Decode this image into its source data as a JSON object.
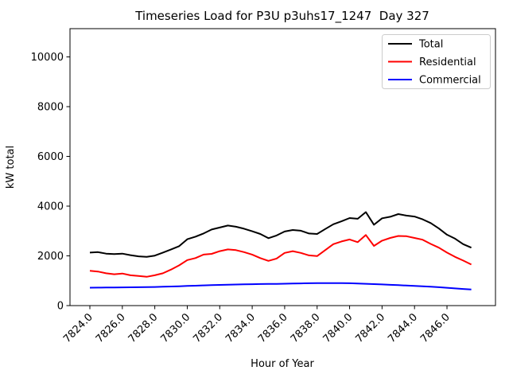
{
  "chart_data": {
    "type": "line",
    "title": "Timeseries Load for P3U p3uhs17_1247  Day 327",
    "xlabel": "Hour of Year",
    "ylabel": "kW total",
    "xlim": [
      7822.8,
      7849.0
    ],
    "ylim": [
      0,
      11100
    ],
    "grid": false,
    "legend_position": "upper right",
    "x_ticks": [
      7824,
      7826,
      7828,
      7830,
      7832,
      7834,
      7836,
      7838,
      7840,
      7842,
      7844,
      7846
    ],
    "x_tick_labels": [
      "7824.0",
      "7826.0",
      "7828.0",
      "7830.0",
      "7832.0",
      "7834.0",
      "7836.0",
      "7838.0",
      "7840.0",
      "7842.0",
      "7844.0",
      "7846.0"
    ],
    "y_ticks": [
      0,
      2000,
      4000,
      6000,
      8000,
      10000
    ],
    "y_tick_labels": [
      "0",
      "2000",
      "4000",
      "6000",
      "8000",
      "10000"
    ],
    "x": [
      7824.0,
      7824.5,
      7825.0,
      7825.5,
      7826.0,
      7826.5,
      7827.0,
      7827.5,
      7828.0,
      7828.5,
      7829.0,
      7829.5,
      7830.0,
      7830.5,
      7831.0,
      7831.5,
      7832.0,
      7832.5,
      7833.0,
      7833.5,
      7834.0,
      7834.5,
      7835.0,
      7835.5,
      7836.0,
      7836.5,
      7837.0,
      7837.5,
      7838.0,
      7838.5,
      7839.0,
      7839.5,
      7840.0,
      7840.5,
      7841.0,
      7841.5,
      7842.0,
      7842.5,
      7843.0,
      7843.5,
      7844.0,
      7844.5,
      7845.0,
      7845.5,
      7846.0,
      7846.5,
      7847.0,
      7847.5
    ],
    "series": [
      {
        "name": "Total",
        "color": "#000000",
        "values": [
          2130,
          2150,
          2090,
          2070,
          2090,
          2030,
          1980,
          1960,
          2010,
          2130,
          2260,
          2390,
          2670,
          2770,
          2900,
          3060,
          3140,
          3220,
          3170,
          3090,
          2990,
          2880,
          2710,
          2820,
          2980,
          3040,
          3010,
          2900,
          2880,
          3080,
          3270,
          3390,
          3520,
          3490,
          3760,
          3250,
          3510,
          3570,
          3680,
          3620,
          3580,
          3470,
          3320,
          3100,
          2850,
          2690,
          2470,
          2330
        ]
      },
      {
        "name": "Residential",
        "color": "#ff0000",
        "values": [
          1400,
          1370,
          1300,
          1260,
          1290,
          1220,
          1190,
          1160,
          1220,
          1300,
          1450,
          1620,
          1830,
          1910,
          2050,
          2080,
          2190,
          2260,
          2230,
          2150,
          2050,
          1910,
          1800,
          1890,
          2120,
          2190,
          2120,
          2020,
          1990,
          2230,
          2470,
          2580,
          2660,
          2550,
          2840,
          2400,
          2610,
          2720,
          2800,
          2790,
          2720,
          2650,
          2480,
          2330,
          2130,
          1960,
          1810,
          1650
        ]
      },
      {
        "name": "Commercial",
        "color": "#0000ff",
        "values": [
          720,
          722,
          725,
          728,
          732,
          736,
          740,
          745,
          750,
          758,
          768,
          778,
          790,
          800,
          812,
          822,
          832,
          840,
          848,
          855,
          860,
          866,
          870,
          874,
          880,
          886,
          892,
          898,
          902,
          905,
          906,
          904,
          898,
          890,
          878,
          864,
          850,
          836,
          822,
          808,
          792,
          776,
          758,
          738,
          716,
          692,
          668,
          645
        ]
      }
    ]
  }
}
